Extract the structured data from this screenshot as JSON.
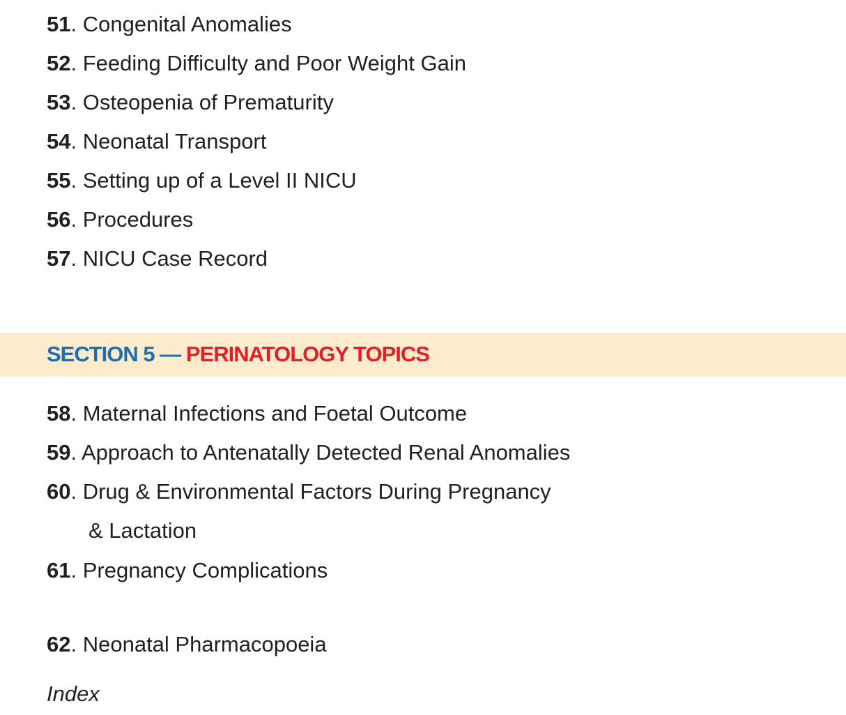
{
  "items_top": [
    {
      "num": "51",
      "title": "Congenital Anomalies"
    },
    {
      "num": "52",
      "title": "Feeding Difficulty and Poor Weight Gain"
    },
    {
      "num": "53",
      "title": "Osteopenia of Prematurity"
    },
    {
      "num": "54",
      "title": "Neonatal Transport"
    },
    {
      "num": "55",
      "title": "Setting up of a Level II NICU"
    },
    {
      "num": "56",
      "title": "Procedures"
    },
    {
      "num": "57",
      "title": "NICU Case Record"
    }
  ],
  "section": {
    "label": "SECTION 5 —",
    "title": "PERINATOLOGY TOPICS",
    "band_color": "#fdebcd",
    "label_color": "#1a6fb6",
    "title_color": "#e31e24"
  },
  "items_bottom": [
    {
      "num": "58",
      "title": "Maternal Infections and Foetal Outcome"
    },
    {
      "num": "59",
      "title": "Approach to Antenatally Detected Renal Anomalies"
    },
    {
      "num": "60",
      "title": "Drug & Environmental Factors During Pregnancy",
      "continuation": "& Lactation"
    },
    {
      "num": "61",
      "title": "Pregnancy Complications"
    },
    {
      "num": "62",
      "title": "Neonatal Pharmacopoeia"
    }
  ],
  "index_label": "Index"
}
